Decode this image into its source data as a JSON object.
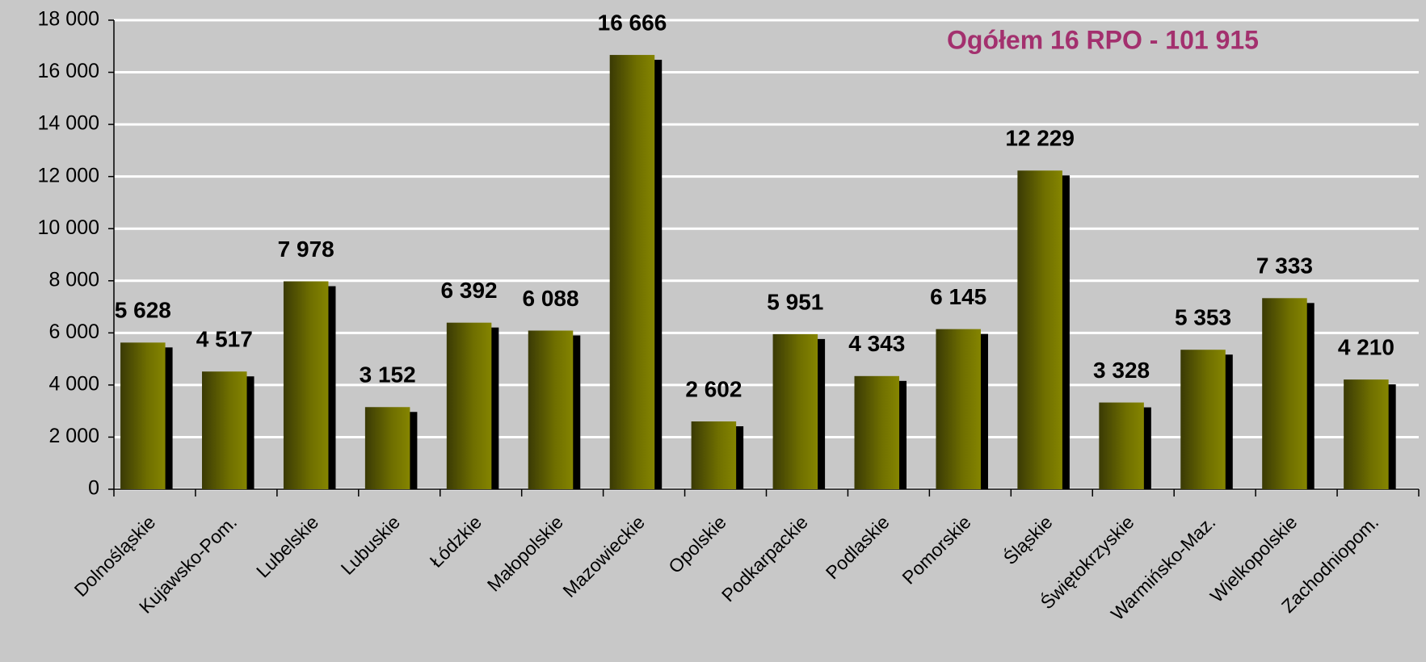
{
  "chart_data": {
    "type": "bar",
    "annotation": "Ogółem 16 RPO - 101 915",
    "categories": [
      "Dolnośląskie",
      "Kujawsko-Pom.",
      "Lubelskie",
      "Lubuskie",
      "Łódzkie",
      "Małopolskie",
      "Mazowieckie",
      "Opolskie",
      "Podkarpackie",
      "Podlaskie",
      "Pomorskie",
      "Śląskie",
      "Świętokrzyskie",
      "Warmińsko-Maz.",
      "Wielkopolskie",
      "Zachodniopom."
    ],
    "values": [
      5628,
      4517,
      7978,
      3152,
      6392,
      6088,
      16666,
      2602,
      5951,
      4343,
      6145,
      12229,
      3328,
      5353,
      7333,
      4210
    ],
    "value_labels": [
      "5 628",
      "4 517",
      "7 978",
      "3 152",
      "6 392",
      "6 088",
      "16 666",
      "2 602",
      "5 951",
      "4 343",
      "6 145",
      "12 229",
      "3 328",
      "5 353",
      "7 333",
      "4 210"
    ],
    "color": "#808000",
    "ylim": [
      0,
      18000
    ],
    "yticks": [
      0,
      {
        "value": 2000,
        "label": "2 000"
      },
      {
        "value": 4000,
        "label": "4 000"
      },
      {
        "value": 6000,
        "label": "6 000"
      },
      {
        "value": 8000,
        "label": "8 000"
      },
      {
        "value": 10000,
        "label": "10 000"
      },
      {
        "value": 12000,
        "label": "12 000"
      },
      {
        "value": 14000,
        "label": "14 000"
      },
      {
        "value": 16000,
        "label": "16 000"
      },
      {
        "value": 18000,
        "label": "18 000"
      }
    ],
    "grid": true
  }
}
